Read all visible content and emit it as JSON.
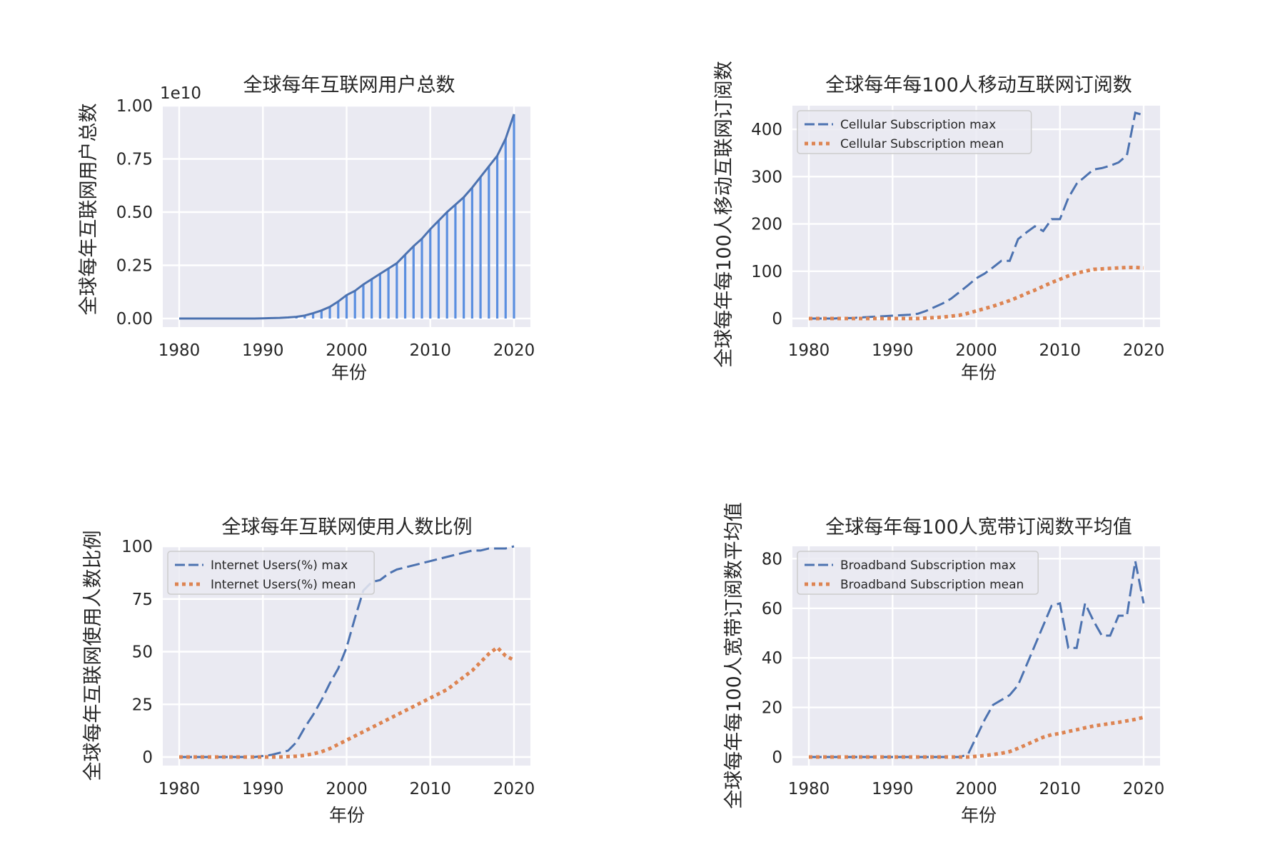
{
  "figure": {
    "background": "#ffffff",
    "axes_face": "#eaeaf2",
    "grid_color": "#ffffff"
  },
  "chart_data": [
    {
      "type": "bar",
      "title": "全球每年互联网用户总数",
      "xlabel": "年份",
      "ylabel": "全球每年互联网用户总数",
      "y_offset_text": "1e10",
      "xlim": [
        1980,
        2020
      ],
      "ylim": [
        0,
        1.0
      ],
      "x_ticks": [
        1980,
        1990,
        2000,
        2010,
        2020
      ],
      "y_ticks": [
        0.0,
        0.25,
        0.5,
        0.75,
        1.0
      ],
      "y_tick_labels": [
        "0.00",
        "0.25",
        "0.50",
        "0.75",
        "1.00"
      ],
      "grid": true,
      "bar_color": "#5b8fe0",
      "line_color": "#4c72b0",
      "x": [
        1980,
        1981,
        1982,
        1983,
        1984,
        1985,
        1986,
        1987,
        1988,
        1989,
        1990,
        1991,
        1992,
        1993,
        1994,
        1995,
        1996,
        1997,
        1998,
        1999,
        2000,
        2001,
        2002,
        2003,
        2004,
        2005,
        2006,
        2007,
        2008,
        2009,
        2010,
        2011,
        2012,
        2013,
        2014,
        2015,
        2016,
        2017,
        2018,
        2019,
        2020
      ],
      "values": [
        0,
        0,
        0,
        0,
        0,
        0,
        0,
        0,
        0,
        0,
        0.001,
        0.002,
        0.003,
        0.005,
        0.008,
        0.014,
        0.025,
        0.038,
        0.055,
        0.08,
        0.11,
        0.13,
        0.16,
        0.185,
        0.21,
        0.235,
        0.26,
        0.3,
        0.34,
        0.375,
        0.42,
        0.46,
        0.5,
        0.535,
        0.57,
        0.615,
        0.665,
        0.715,
        0.765,
        0.845,
        0.96
      ]
    },
    {
      "type": "line",
      "title": "全球每年每100人移动互联网订阅数",
      "xlabel": "年份",
      "ylabel": "全球每年每100人移动互联网订阅数",
      "xlim": [
        1980,
        2020
      ],
      "ylim": [
        0,
        450
      ],
      "x_ticks": [
        1980,
        1990,
        2000,
        2010,
        2020
      ],
      "y_ticks": [
        0,
        100,
        200,
        300,
        400
      ],
      "grid": true,
      "legend_position": "top-left",
      "x": [
        1980,
        1981,
        1982,
        1983,
        1984,
        1985,
        1986,
        1987,
        1988,
        1989,
        1990,
        1991,
        1992,
        1993,
        1994,
        1995,
        1996,
        1997,
        1998,
        1999,
        2000,
        2001,
        2002,
        2003,
        2004,
        2005,
        2006,
        2007,
        2008,
        2009,
        2010,
        2011,
        2012,
        2013,
        2014,
        2015,
        2016,
        2017,
        2018,
        2019,
        2020
      ],
      "series": [
        {
          "name": "Cellular Subscription max",
          "color": "#4c72b0",
          "style": "dashed",
          "values": [
            0,
            0,
            0,
            0,
            1,
            1,
            2,
            3,
            4,
            5,
            6,
            7,
            8,
            10,
            16,
            24,
            32,
            42,
            56,
            70,
            85,
            95,
            108,
            122,
            122,
            168,
            182,
            195,
            185,
            210,
            210,
            255,
            285,
            300,
            315,
            318,
            323,
            330,
            345,
            435,
            430
          ]
        },
        {
          "name": "Cellular Subscription mean",
          "color": "#dd8452",
          "style": "dotted",
          "values": [
            0,
            0,
            0,
            0,
            0,
            0,
            0,
            0,
            0,
            0,
            0,
            0,
            0,
            0,
            1,
            2,
            3,
            5,
            7,
            11,
            16,
            21,
            26,
            32,
            38,
            45,
            53,
            60,
            68,
            76,
            83,
            90,
            96,
            100,
            104,
            105,
            106,
            107,
            108,
            108,
            107
          ]
        }
      ]
    },
    {
      "type": "line",
      "title": "全球每年互联网使用人数比例",
      "xlabel": "年份",
      "ylabel": "全球每年互联网使用人数比例",
      "xlim": [
        1980,
        2020
      ],
      "ylim": [
        0,
        100
      ],
      "x_ticks": [
        1980,
        1990,
        2000,
        2010,
        2020
      ],
      "y_ticks": [
        0,
        25,
        50,
        75,
        100
      ],
      "grid": true,
      "legend_position": "top-left",
      "x": [
        1980,
        1981,
        1982,
        1983,
        1984,
        1985,
        1986,
        1987,
        1988,
        1989,
        1990,
        1991,
        1992,
        1993,
        1994,
        1995,
        1996,
        1997,
        1998,
        1999,
        2000,
        2001,
        2002,
        2003,
        2004,
        2005,
        2006,
        2007,
        2008,
        2009,
        2010,
        2011,
        2012,
        2013,
        2014,
        2015,
        2016,
        2017,
        2018,
        2019,
        2020
      ],
      "series": [
        {
          "name": "Internet Users(%) max",
          "color": "#4c72b0",
          "style": "dashed",
          "values": [
            0,
            0,
            0,
            0,
            0,
            0,
            0,
            0,
            0,
            0,
            0.5,
            1,
            2,
            3,
            7,
            14,
            20,
            27,
            35,
            42,
            52,
            66,
            79,
            83,
            84,
            87,
            89,
            90,
            91,
            92,
            93,
            94,
            95,
            96,
            97,
            98,
            98,
            99,
            99,
            99,
            100
          ]
        },
        {
          "name": "Internet Users(%) mean",
          "color": "#dd8452",
          "style": "dotted",
          "values": [
            0,
            0,
            0,
            0,
            0,
            0,
            0,
            0,
            0,
            0,
            0,
            0,
            0,
            0.2,
            0.4,
            0.8,
            1.5,
            2.5,
            4,
            6,
            8,
            10,
            12,
            14,
            16,
            18,
            20,
            22,
            24,
            26,
            28,
            30,
            32,
            35,
            38,
            41,
            45,
            49,
            52,
            48,
            46
          ]
        }
      ]
    },
    {
      "type": "line",
      "title": "全球每年每100人宽带订阅数平均值",
      "xlabel": "年份",
      "ylabel": "全球每年每100人宽带订阅数平均值",
      "xlim": [
        1980,
        2020
      ],
      "ylim": [
        0,
        85
      ],
      "x_ticks": [
        1980,
        1990,
        2000,
        2010,
        2020
      ],
      "y_ticks": [
        0,
        20,
        40,
        60,
        80
      ],
      "grid": true,
      "legend_position": "top-left",
      "x": [
        1980,
        1981,
        1982,
        1983,
        1984,
        1985,
        1986,
        1987,
        1988,
        1989,
        1990,
        1991,
        1992,
        1993,
        1994,
        1995,
        1996,
        1997,
        1998,
        1999,
        2000,
        2001,
        2002,
        2003,
        2004,
        2005,
        2006,
        2007,
        2008,
        2009,
        2010,
        2011,
        2012,
        2013,
        2014,
        2015,
        2016,
        2017,
        2018,
        2019,
        2020
      ],
      "series": [
        {
          "name": "Broadband Subscription max",
          "color": "#4c72b0",
          "style": "dashed",
          "values": [
            0,
            0,
            0,
            0,
            0,
            0,
            0,
            0,
            0,
            0,
            0,
            0,
            0,
            0,
            0,
            0,
            0,
            0,
            0,
            1,
            8,
            15,
            21,
            23,
            25,
            29,
            37,
            45,
            53,
            61,
            62,
            44,
            44,
            62,
            55,
            49,
            49,
            57,
            57,
            79,
            62
          ]
        },
        {
          "name": "Broadband Subscription mean",
          "color": "#dd8452",
          "style": "dotted",
          "values": [
            0,
            0,
            0,
            0,
            0,
            0,
            0,
            0,
            0,
            0,
            0,
            0,
            0,
            0,
            0,
            0,
            0,
            0,
            0,
            0,
            0.3,
            0.6,
            1,
            1.5,
            2.2,
            3.5,
            5,
            6.5,
            8,
            9,
            9.5,
            10.3,
            11,
            11.8,
            12.5,
            13,
            13.5,
            14,
            14.6,
            15.2,
            16
          ]
        }
      ]
    }
  ]
}
